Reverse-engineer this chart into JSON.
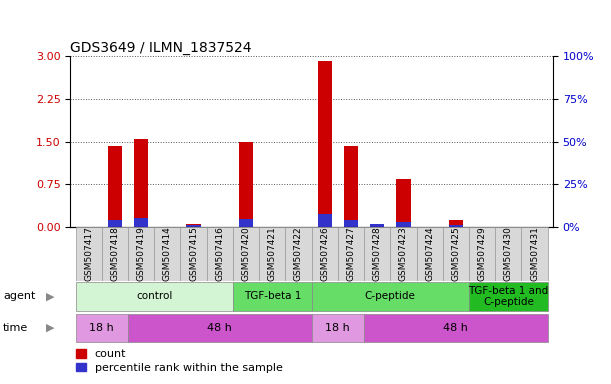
{
  "title": "GDS3649 / ILMN_1837524",
  "samples": [
    "GSM507417",
    "GSM507418",
    "GSM507419",
    "GSM507414",
    "GSM507415",
    "GSM507416",
    "GSM507420",
    "GSM507421",
    "GSM507422",
    "GSM507426",
    "GSM507427",
    "GSM507428",
    "GSM507423",
    "GSM507424",
    "GSM507425",
    "GSM507429",
    "GSM507430",
    "GSM507431"
  ],
  "count_values": [
    0.0,
    1.42,
    1.55,
    0.0,
    0.06,
    0.0,
    1.5,
    0.0,
    0.0,
    2.92,
    1.42,
    0.0,
    0.85,
    0.0,
    0.12,
    0.0,
    0.0,
    0.0
  ],
  "percentile_values": [
    0.0,
    0.13,
    0.15,
    0.0,
    0.04,
    0.0,
    0.14,
    0.0,
    0.0,
    0.22,
    0.13,
    0.05,
    0.09,
    0.0,
    0.04,
    0.0,
    0.0,
    0.0
  ],
  "bar_color_count": "#cc0000",
  "bar_color_pct": "#3333cc",
  "ylim_left": [
    0,
    3
  ],
  "ylim_right": [
    0,
    100
  ],
  "yticks_left": [
    0,
    0.75,
    1.5,
    2.25,
    3
  ],
  "yticks_right": [
    0,
    25,
    50,
    75,
    100
  ],
  "agent_groups": [
    {
      "label": "control",
      "start": 0,
      "end": 5,
      "color": "#d4f5d4"
    },
    {
      "label": "TGF-beta 1",
      "start": 6,
      "end": 8,
      "color": "#66dd66"
    },
    {
      "label": "C-peptide",
      "start": 9,
      "end": 14,
      "color": "#66dd66"
    },
    {
      "label": "TGF-beta 1 and\nC-peptide",
      "start": 15,
      "end": 17,
      "color": "#22bb22"
    }
  ],
  "time_groups": [
    {
      "label": "18 h",
      "start": 0,
      "end": 1,
      "color": "#e099e0"
    },
    {
      "label": "48 h",
      "start": 2,
      "end": 8,
      "color": "#cc55cc"
    },
    {
      "label": "18 h",
      "start": 9,
      "end": 10,
      "color": "#e099e0"
    },
    {
      "label": "48 h",
      "start": 11,
      "end": 17,
      "color": "#cc55cc"
    }
  ],
  "bar_width": 0.55,
  "title_fontsize": 10,
  "legend_fontsize": 8,
  "left_axis_color": "#cc0000",
  "right_axis_color": "#0000cc",
  "sample_box_color": "#d8d8d8",
  "sample_box_edge": "#999999"
}
